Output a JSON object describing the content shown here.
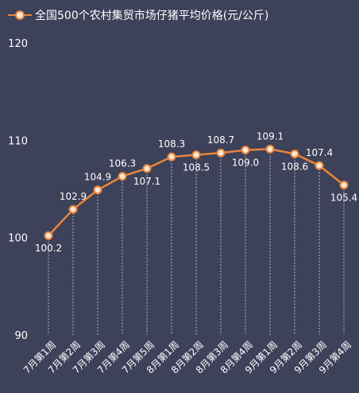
{
  "colors": {
    "background": "#3d4159",
    "line": "#e8853d",
    "marker_fill": "#fbe7d3",
    "drop_line": "#b9bdca"
  },
  "chart_data": {
    "type": "line",
    "legend_position": "top-left",
    "grid": false,
    "categories": [
      "7月第1周",
      "7月第2周",
      "7月第3周",
      "7月第4周",
      "7月第5周",
      "8月第1周",
      "8月第2周",
      "8月第3周",
      "8月第4周",
      "9月第1周",
      "9月第2周",
      "9月第3周",
      "9月第4周"
    ],
    "series": [
      {
        "name": "全国500个农村集贸市场仔猪平均价格(元/公斤)",
        "values": [
          100.2,
          102.9,
          104.9,
          106.3,
          107.1,
          108.3,
          108.5,
          108.7,
          109.0,
          109.1,
          108.6,
          107.4,
          105.4
        ],
        "value_labels": [
          "100.2",
          "102.9",
          "104.9",
          "106.3",
          "107.1",
          "108.3",
          "108.5",
          "108.7",
          "109.0",
          "109.1",
          "108.6",
          "107.4",
          "105.4"
        ],
        "label_positions": [
          "below",
          "above",
          "above",
          "above",
          "below",
          "above",
          "below",
          "above",
          "below",
          "above",
          "below",
          "above",
          "below"
        ]
      }
    ],
    "ylim": [
      90,
      120
    ],
    "yticks": [
      90,
      100,
      110,
      120
    ],
    "ytick_labels": [
      "90",
      "100",
      "110",
      "120"
    ]
  }
}
